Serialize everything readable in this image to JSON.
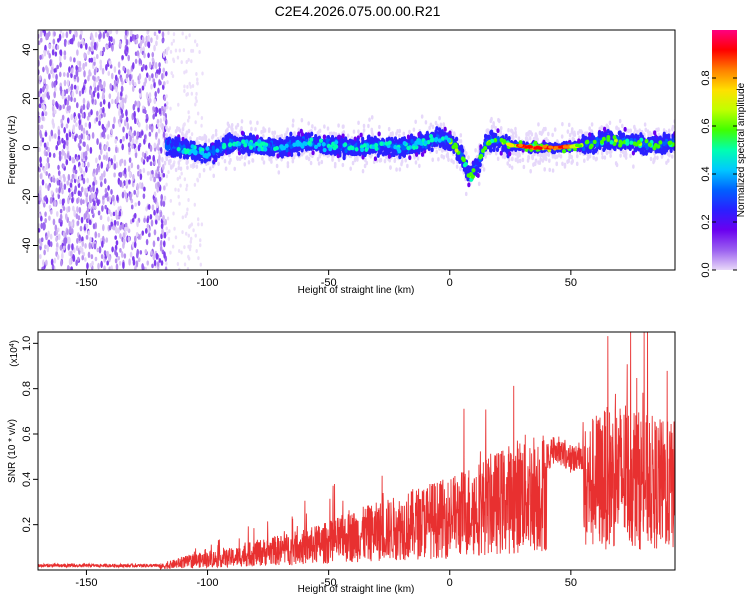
{
  "window": {
    "title": "C2E4.2026.075.00.00.R21"
  },
  "chart_data": [
    {
      "id": "spectrogram",
      "type": "heatmap",
      "xlabel": "Height of straight line (km)",
      "ylabel": "Frequency (Hz)",
      "xlim": [
        -170,
        93
      ],
      "ylim": [
        -50,
        48
      ],
      "x_ticks": [
        -150,
        -100,
        -50,
        0,
        50
      ],
      "y_ticks": [
        -40,
        -20,
        0,
        20,
        40
      ],
      "colorbar": {
        "label": "Normalized spectral amplitude",
        "range": [
          0.0,
          1.0
        ],
        "ticks": [
          0.0,
          0.2,
          0.4,
          0.6,
          0.8
        ],
        "colormap": [
          "#e8d8f8",
          "#9b60f0",
          "#6a00f0",
          "#2a20ff",
          "#0060ff",
          "#00c8ff",
          "#00ffb0",
          "#40ff00",
          "#c0ff00",
          "#ffe000",
          "#ff8000",
          "#ff0000",
          "#ff0080"
        ]
      },
      "centerline": [
        [
          -115,
          1
        ],
        [
          -100,
          -3
        ],
        [
          -90,
          2
        ],
        [
          -80,
          1
        ],
        [
          -70,
          0
        ],
        [
          -60,
          2
        ],
        [
          -50,
          1
        ],
        [
          -40,
          0
        ],
        [
          -30,
          1
        ],
        [
          -20,
          0
        ],
        [
          -10,
          2
        ],
        [
          -5,
          4
        ],
        [
          0,
          3
        ],
        [
          5,
          -3
        ],
        [
          8,
          -12
        ],
        [
          11,
          -8
        ],
        [
          15,
          2
        ],
        [
          20,
          3
        ],
        [
          25,
          1
        ],
        [
          35,
          0
        ],
        [
          45,
          0
        ],
        [
          55,
          1
        ],
        [
          65,
          3
        ],
        [
          75,
          2
        ],
        [
          85,
          1
        ],
        [
          92,
          2
        ]
      ],
      "core_color": "#ff1010",
      "core_range_km": [
        28,
        50
      ]
    },
    {
      "id": "snr",
      "type": "line",
      "xlabel": "Height of straight line (km)",
      "ylabel": "SNR (10 * v/v)",
      "multiplier_label": "(x10",
      "multiplier_exponent": "4",
      "multiplier_close": ")",
      "xlim": [
        -170,
        93
      ],
      "ylim": [
        0,
        1.05
      ],
      "x_ticks": [
        -150,
        -100,
        -50,
        0,
        50
      ],
      "y_ticks": [
        0.2,
        0.4,
        0.6,
        0.8,
        1.0
      ],
      "color": "#e83030",
      "envelope": [
        [
          -170,
          0.02
        ],
        [
          -120,
          0.02
        ],
        [
          -110,
          0.05
        ],
        [
          -100,
          0.07
        ],
        [
          -90,
          0.08
        ],
        [
          -80,
          0.11
        ],
        [
          -70,
          0.13
        ],
        [
          -60,
          0.15
        ],
        [
          -50,
          0.18
        ],
        [
          -40,
          0.22
        ],
        [
          -30,
          0.25
        ],
        [
          -20,
          0.28
        ],
        [
          -10,
          0.32
        ],
        [
          0,
          0.34
        ],
        [
          10,
          0.4
        ],
        [
          20,
          0.44
        ],
        [
          30,
          0.5
        ],
        [
          40,
          0.52
        ],
        [
          45,
          0.55
        ],
        [
          50,
          0.5
        ],
        [
          55,
          0.52
        ],
        [
          60,
          0.58
        ],
        [
          70,
          0.62
        ],
        [
          80,
          0.58
        ],
        [
          90,
          0.55
        ]
      ]
    }
  ]
}
